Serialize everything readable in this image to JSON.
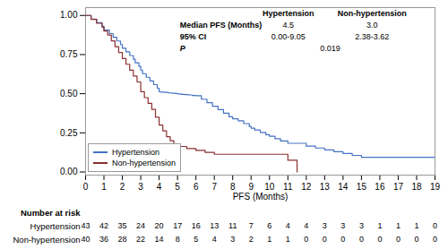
{
  "chart_data": {
    "type": "step",
    "xlabel": "PFS (Months)",
    "xlim": [
      0,
      19
    ],
    "ylim": [
      -0.02,
      1.05
    ],
    "xticks": [
      0,
      1,
      2,
      3,
      4,
      5,
      6,
      7,
      8,
      9,
      10,
      11,
      12,
      13,
      14,
      15,
      16,
      17,
      18,
      19
    ],
    "yticks": [
      {
        "value": 0.0,
        "label": "0.00"
      },
      0.25,
      {
        "value": 0.5,
        "label": "0.50"
      },
      0.75,
      {
        "value": 1.0,
        "label": "1.00"
      }
    ],
    "legend": "lower left",
    "series": [
      {
        "name": "Hypertension",
        "color": "#4472C4",
        "x": [
          0,
          0.3,
          0.6,
          0.9,
          1.0,
          1.3,
          1.5,
          1.7,
          1.9,
          2.0,
          2.2,
          2.4,
          2.6,
          2.7,
          2.9,
          3.0,
          3.1,
          3.3,
          3.5,
          3.7,
          3.9,
          4.0,
          4.1,
          4.3,
          4.5,
          4.7,
          4.9,
          5.0,
          5.2,
          5.4,
          5.6,
          5.8,
          6.0,
          6.3,
          6.6,
          6.9,
          7.2,
          7.5,
          7.8,
          8.0,
          8.3,
          8.6,
          8.9,
          9.0,
          9.2,
          9.5,
          9.8,
          10.0,
          10.3,
          10.6,
          11.0,
          12.0,
          12.5,
          13.0,
          13.5,
          14.0,
          14.5,
          15.0,
          15.5,
          16.0,
          17.0,
          18.0,
          18.5,
          19.0
        ],
        "values": [
          1.0,
          0.977,
          0.954,
          0.931,
          0.907,
          0.884,
          0.86,
          0.837,
          0.814,
          0.79,
          0.767,
          0.744,
          0.72,
          0.697,
          0.674,
          0.651,
          0.628,
          0.605,
          0.581,
          0.558,
          0.535,
          0.512,
          0.51,
          0.508,
          0.505,
          0.503,
          0.501,
          0.499,
          0.496,
          0.494,
          0.492,
          0.489,
          0.487,
          0.465,
          0.443,
          0.42,
          0.398,
          0.376,
          0.353,
          0.34,
          0.327,
          0.309,
          0.291,
          0.28,
          0.268,
          0.253,
          0.238,
          0.228,
          0.213,
          0.198,
          0.183,
          0.165,
          0.153,
          0.141,
          0.13,
          0.118,
          0.106,
          0.094,
          0.094,
          0.094,
          0.094,
          0.094,
          0.094,
          0.094
        ]
      },
      {
        "name": "Non-hypertension",
        "color": "#8B3030",
        "x": [
          0,
          0.3,
          0.6,
          0.9,
          1.0,
          1.2,
          1.4,
          1.6,
          1.8,
          2.0,
          2.2,
          2.4,
          2.6,
          2.8,
          3.0,
          3.2,
          3.4,
          3.6,
          3.8,
          4.0,
          4.2,
          4.4,
          4.6,
          4.8,
          5.0,
          5.5,
          6.0,
          6.5,
          7.0,
          7.5,
          8.0,
          8.5,
          9.0,
          9.5,
          10.0,
          10.5,
          11.0,
          11.5
        ],
        "values": [
          1.0,
          0.975,
          0.95,
          0.925,
          0.9,
          0.875,
          0.838,
          0.8,
          0.763,
          0.725,
          0.688,
          0.65,
          0.613,
          0.575,
          0.513,
          0.475,
          0.438,
          0.4,
          0.35,
          0.3,
          0.263,
          0.225,
          0.2,
          0.175,
          0.163,
          0.15,
          0.138,
          0.125,
          0.113,
          0.113,
          0.113,
          0.113,
          0.113,
          0.113,
          0.113,
          0.113,
          0.075,
          0.0
        ]
      }
    ],
    "summary_table": {
      "columns": [
        "Hypertension",
        "Non-hypertension"
      ],
      "rows": [
        {
          "label": "Median PFS (Months)",
          "values": [
            "4.5",
            "3.0"
          ]
        },
        {
          "label": "95% CI",
          "values": [
            "0.00-9.05",
            "2.38-3.62"
          ]
        }
      ],
      "p": {
        "label": "P",
        "value": "0.019"
      }
    },
    "risk_table": {
      "title": "Number at risk",
      "x": [
        0,
        1,
        2,
        3,
        4,
        5,
        6,
        7,
        8,
        9,
        10,
        11,
        12,
        13,
        14,
        15,
        16,
        17,
        18,
        19
      ],
      "rows": [
        {
          "name": "Hypertension",
          "values": [
            43,
            42,
            35,
            24,
            20,
            17,
            16,
            13,
            11,
            7,
            6,
            4,
            4,
            3,
            3,
            3,
            1,
            1,
            1,
            0
          ]
        },
        {
          "name": "Non-hypertension",
          "values": [
            40,
            36,
            28,
            22,
            14,
            8,
            5,
            4,
            3,
            2,
            1,
            1,
            0,
            0,
            0,
            0,
            0,
            0,
            0,
            0
          ]
        }
      ]
    }
  }
}
